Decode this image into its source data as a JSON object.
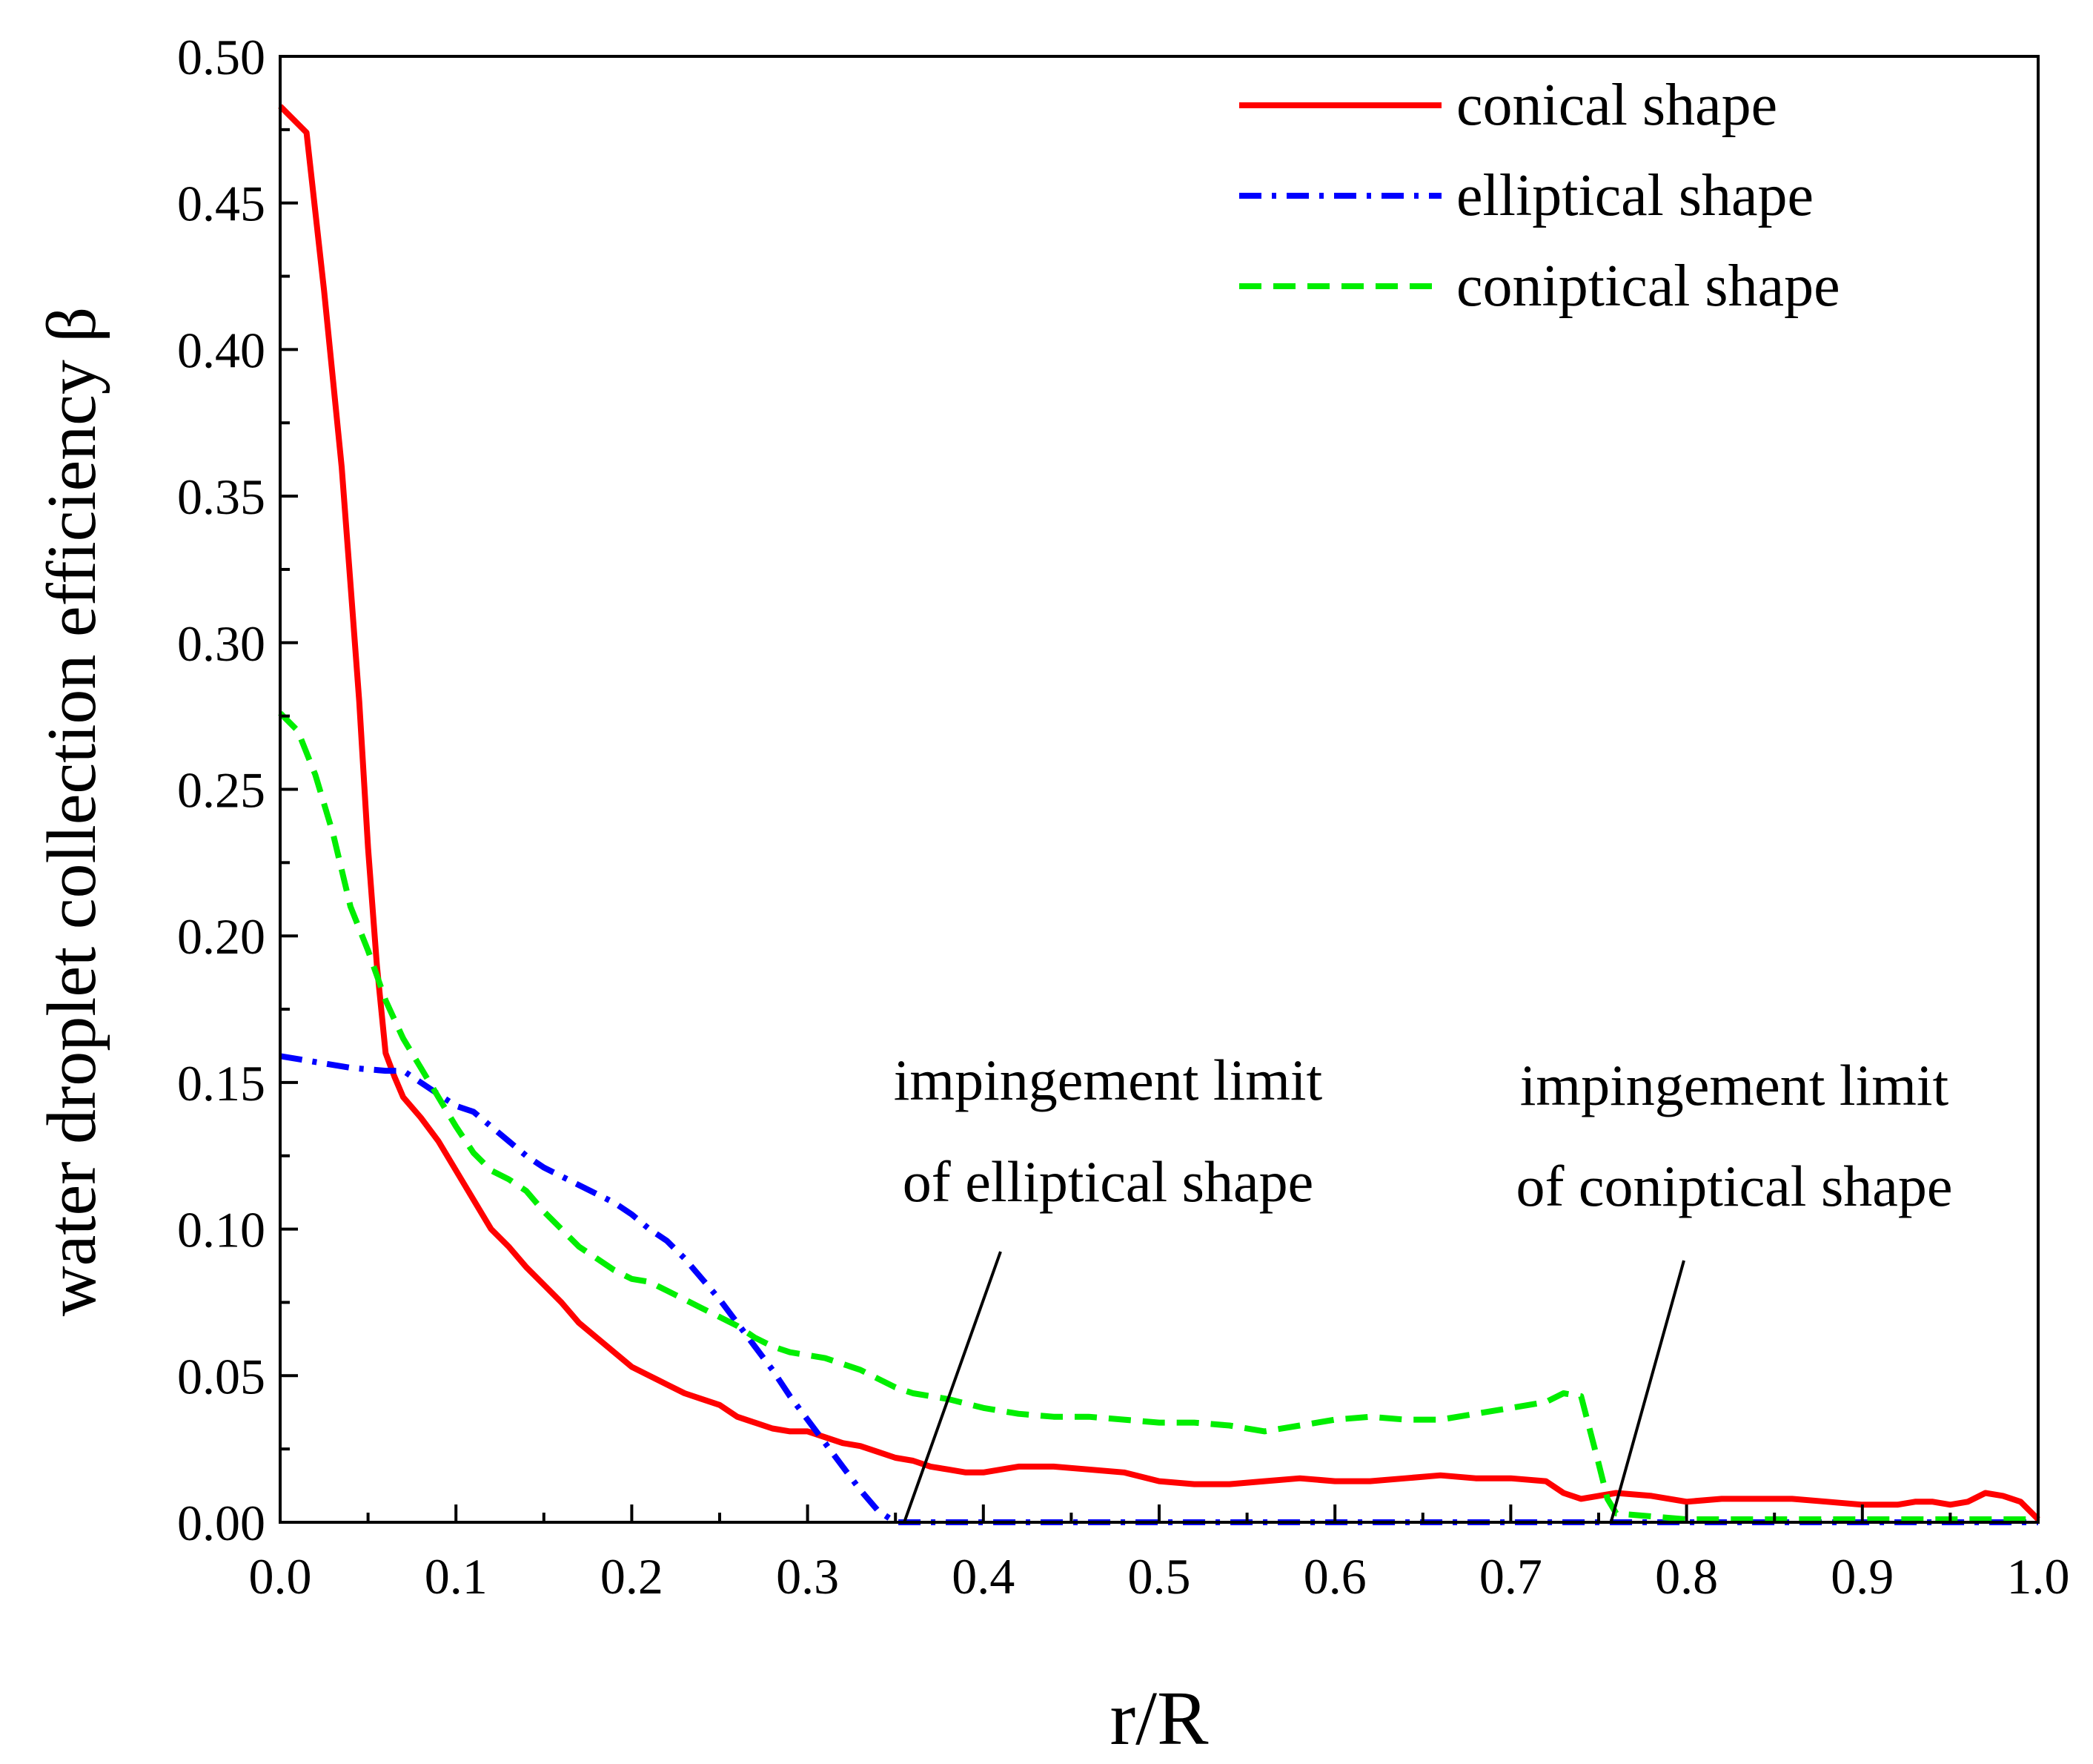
{
  "chart_data": {
    "type": "line",
    "title": "",
    "xlabel": "r/R",
    "ylabel": "water droplet collection efficiency β",
    "xlim": [
      0.0,
      1.0
    ],
    "ylim": [
      0.0,
      0.5
    ],
    "xticks": [
      "0.0",
      "0.1",
      "0.2",
      "0.3",
      "0.4",
      "0.5",
      "0.6",
      "0.7",
      "0.8",
      "0.9",
      "1.0"
    ],
    "yticks": [
      "0.00",
      "0.05",
      "0.10",
      "0.15",
      "0.20",
      "0.25",
      "0.30",
      "0.35",
      "0.40",
      "0.45",
      "0.50"
    ],
    "grid": false,
    "legend_position": "top-right",
    "series": [
      {
        "name": "conical shape",
        "color": "#ff0000",
        "style": "solid",
        "x": [
          0.0,
          0.015,
          0.025,
          0.035,
          0.04,
          0.045,
          0.05,
          0.055,
          0.06,
          0.065,
          0.07,
          0.08,
          0.09,
          0.1,
          0.11,
          0.12,
          0.13,
          0.14,
          0.15,
          0.16,
          0.17,
          0.18,
          0.19,
          0.2,
          0.21,
          0.22,
          0.23,
          0.24,
          0.25,
          0.26,
          0.27,
          0.28,
          0.29,
          0.3,
          0.31,
          0.32,
          0.33,
          0.34,
          0.35,
          0.36,
          0.37,
          0.38,
          0.39,
          0.4,
          0.42,
          0.44,
          0.46,
          0.48,
          0.5,
          0.52,
          0.54,
          0.56,
          0.58,
          0.6,
          0.62,
          0.64,
          0.66,
          0.68,
          0.7,
          0.72,
          0.73,
          0.74,
          0.75,
          0.76,
          0.78,
          0.8,
          0.82,
          0.84,
          0.86,
          0.88,
          0.9,
          0.92,
          0.93,
          0.94,
          0.95,
          0.96,
          0.97,
          0.98,
          0.99,
          1.0
        ],
        "y": [
          0.483,
          0.474,
          0.42,
          0.36,
          0.32,
          0.28,
          0.23,
          0.19,
          0.16,
          0.152,
          0.145,
          0.138,
          0.13,
          0.12,
          0.11,
          0.1,
          0.094,
          0.087,
          0.081,
          0.075,
          0.068,
          0.063,
          0.058,
          0.053,
          0.05,
          0.047,
          0.044,
          0.042,
          0.04,
          0.036,
          0.034,
          0.032,
          0.031,
          0.031,
          0.029,
          0.027,
          0.026,
          0.024,
          0.022,
          0.021,
          0.019,
          0.018,
          0.017,
          0.017,
          0.019,
          0.019,
          0.018,
          0.017,
          0.014,
          0.013,
          0.013,
          0.014,
          0.015,
          0.014,
          0.014,
          0.015,
          0.016,
          0.015,
          0.015,
          0.014,
          0.01,
          0.008,
          0.009,
          0.01,
          0.009,
          0.007,
          0.008,
          0.008,
          0.008,
          0.007,
          0.006,
          0.006,
          0.007,
          0.007,
          0.006,
          0.007,
          0.01,
          0.009,
          0.007,
          0.001
        ]
      },
      {
        "name": "elliptical shape",
        "color": "#0000ff",
        "style": "dash-dot",
        "x": [
          0.0,
          0.02,
          0.04,
          0.06,
          0.07,
          0.08,
          0.09,
          0.1,
          0.11,
          0.12,
          0.13,
          0.14,
          0.15,
          0.16,
          0.17,
          0.18,
          0.19,
          0.2,
          0.21,
          0.22,
          0.23,
          0.24,
          0.25,
          0.26,
          0.27,
          0.28,
          0.29,
          0.3,
          0.31,
          0.32,
          0.33,
          0.34,
          0.35,
          0.36,
          0.4,
          0.5,
          0.6,
          0.7,
          0.8,
          0.9,
          1.0
        ],
        "y": [
          0.159,
          0.157,
          0.155,
          0.154,
          0.154,
          0.15,
          0.146,
          0.142,
          0.14,
          0.135,
          0.13,
          0.125,
          0.121,
          0.118,
          0.115,
          0.112,
          0.109,
          0.105,
          0.1,
          0.096,
          0.09,
          0.083,
          0.076,
          0.068,
          0.06,
          0.052,
          0.043,
          0.035,
          0.027,
          0.019,
          0.011,
          0.004,
          0.0,
          0.0,
          0.0,
          0.0,
          0.0,
          0.0,
          0.0,
          0.0,
          0.0
        ]
      },
      {
        "name": "coniptical shape",
        "color": "#00ee00",
        "style": "dashed",
        "x": [
          0.0,
          0.01,
          0.02,
          0.03,
          0.04,
          0.05,
          0.06,
          0.07,
          0.08,
          0.09,
          0.1,
          0.11,
          0.12,
          0.13,
          0.14,
          0.15,
          0.16,
          0.17,
          0.18,
          0.19,
          0.2,
          0.21,
          0.22,
          0.23,
          0.24,
          0.25,
          0.26,
          0.27,
          0.28,
          0.29,
          0.3,
          0.31,
          0.32,
          0.33,
          0.34,
          0.35,
          0.36,
          0.38,
          0.4,
          0.42,
          0.44,
          0.46,
          0.48,
          0.5,
          0.52,
          0.54,
          0.56,
          0.58,
          0.6,
          0.62,
          0.64,
          0.66,
          0.68,
          0.7,
          0.72,
          0.73,
          0.74,
          0.75,
          0.755,
          0.76,
          0.8,
          0.9,
          1.0
        ],
        "y": [
          0.276,
          0.27,
          0.255,
          0.235,
          0.21,
          0.195,
          0.178,
          0.165,
          0.155,
          0.145,
          0.135,
          0.126,
          0.12,
          0.117,
          0.113,
          0.106,
          0.1,
          0.094,
          0.09,
          0.086,
          0.083,
          0.082,
          0.079,
          0.076,
          0.073,
          0.07,
          0.067,
          0.063,
          0.06,
          0.058,
          0.057,
          0.056,
          0.054,
          0.052,
          0.049,
          0.046,
          0.044,
          0.042,
          0.039,
          0.037,
          0.036,
          0.036,
          0.035,
          0.034,
          0.034,
          0.033,
          0.031,
          0.033,
          0.035,
          0.036,
          0.035,
          0.035,
          0.037,
          0.039,
          0.041,
          0.044,
          0.043,
          0.02,
          0.008,
          0.003,
          0.001,
          0.001,
          0.001
        ]
      }
    ],
    "annotations": [
      {
        "lines": [
          "impingement limit",
          "of elliptical shape"
        ],
        "target_x": 0.355,
        "target_y": 0.0
      },
      {
        "lines": [
          "impingement limit",
          "of coniptical shape"
        ],
        "target_x": 0.757,
        "target_y": 0.0
      }
    ]
  }
}
